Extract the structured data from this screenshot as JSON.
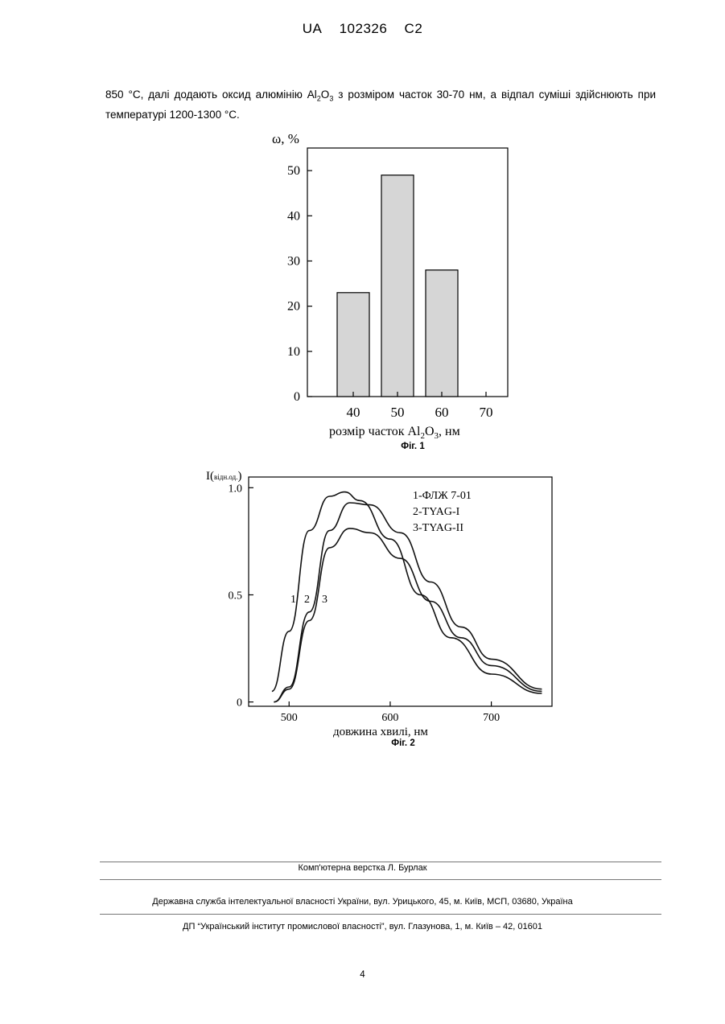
{
  "header": {
    "country": "UA",
    "number": "102326",
    "kind": "C2"
  },
  "paragraph": {
    "part1": "850 °C, далі додають оксид алюмінію Al",
    "sub1": "2",
    "part2": "O",
    "sub2": "3",
    "part3": " з розміром часток 30-70 нм, а відпал суміші здійснюють при температурі 1200-1300 °C."
  },
  "figure1": {
    "caption": "Фіг. 1",
    "ylabel": "ω, %",
    "xlabel_main": "розмір часток Al",
    "xlabel_sub1": "2",
    "xlabel_mid": "O",
    "xlabel_sub2": "3",
    "xlabel_unit": ", нм",
    "chart_data": {
      "type": "bar",
      "categories": [
        "40",
        "50",
        "60",
        "70"
      ],
      "values": [
        23,
        49,
        28,
        null
      ],
      "yticks": [
        "0",
        "10",
        "20",
        "30",
        "40",
        "50"
      ],
      "ylim": [
        0,
        55
      ],
      "bar_color": "#d6d6d6"
    }
  },
  "figure2": {
    "caption": "Фіг. 2",
    "ylabel_main": "I(",
    "ylabel_sub": "відн.од.",
    "ylabel_close": ")",
    "xlabel": "довжина хвилі, нм",
    "legend": [
      "1-ФЛЖ 7-01",
      "2-TYAG-I",
      "3-TYAG-II"
    ],
    "curve_labels": [
      "1",
      "2",
      "3"
    ],
    "chart_data": {
      "type": "line",
      "xticks": [
        "500",
        "600",
        "700"
      ],
      "yticks": [
        "0",
        "0.5",
        "1.0"
      ],
      "xlim": [
        460,
        760
      ],
      "ylim": [
        -0.02,
        1.05
      ],
      "series": [
        {
          "name": "1-ФЛЖ 7-01",
          "x": [
            483,
            500,
            520,
            540,
            555,
            570,
            600,
            630,
            660,
            700,
            750
          ],
          "y": [
            0.05,
            0.33,
            0.8,
            0.96,
            0.98,
            0.94,
            0.76,
            0.5,
            0.3,
            0.13,
            0.04
          ]
        },
        {
          "name": "2-TYAG-I",
          "x": [
            485,
            500,
            520,
            540,
            560,
            580,
            610,
            640,
            670,
            700,
            750
          ],
          "y": [
            0.0,
            0.07,
            0.42,
            0.8,
            0.93,
            0.92,
            0.79,
            0.56,
            0.35,
            0.2,
            0.06
          ]
        },
        {
          "name": "3-TYAG-II",
          "x": [
            485,
            500,
            520,
            540,
            560,
            580,
            610,
            640,
            670,
            700,
            750
          ],
          "y": [
            0.0,
            0.06,
            0.38,
            0.72,
            0.81,
            0.79,
            0.67,
            0.47,
            0.3,
            0.17,
            0.05
          ]
        }
      ],
      "line_color": "#111111"
    }
  },
  "footer": {
    "layout_credit": "Комп'ютерна верстка Л. Бурлак",
    "agency": "Державна служба інтелектуальної власності України, вул. Урицького, 45, м. Київ, МСП, 03680, Україна",
    "institute": "ДП “Український інститут промислової власності”, вул. Глазунова, 1, м. Київ – 42, 01601"
  },
  "page_number": "4"
}
